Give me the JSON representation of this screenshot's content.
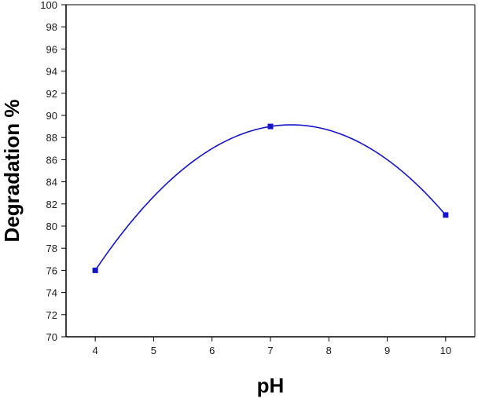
{
  "chart_data": {
    "type": "line",
    "title": "",
    "xlabel": "pH",
    "ylabel": "Degradation %",
    "xlim": [
      3.5,
      10.5
    ],
    "ylim": [
      70,
      100
    ],
    "x_ticks": [
      4,
      5,
      6,
      7,
      8,
      9,
      10
    ],
    "y_ticks": [
      70,
      72,
      74,
      76,
      78,
      80,
      82,
      84,
      86,
      88,
      90,
      92,
      94,
      96,
      98,
      100
    ],
    "grid": false,
    "legend": "none",
    "series": [
      {
        "x": [
          4,
          7,
          10
        ],
        "y": [
          76,
          89,
          81
        ],
        "marker": "square",
        "smoothed": true,
        "color": "#1414c8"
      }
    ]
  }
}
